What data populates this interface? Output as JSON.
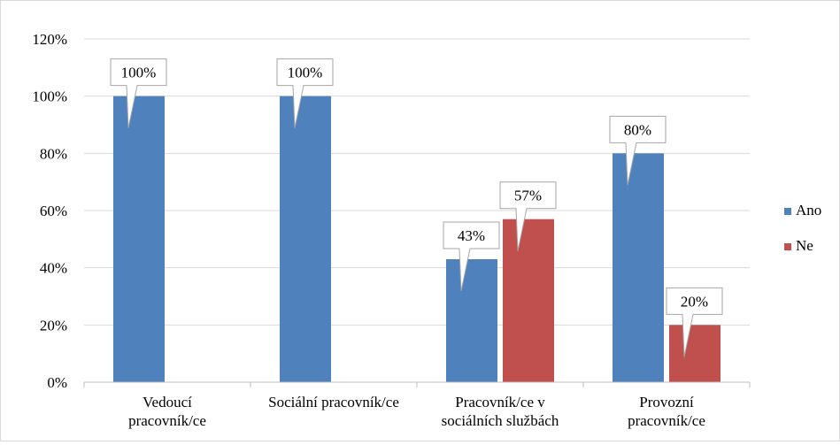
{
  "chart_data": {
    "type": "bar",
    "categories": [
      [
        "Vedoucí",
        "pracovník/ce"
      ],
      [
        "Sociální pracovník/ce"
      ],
      [
        "Pracovník/ce v",
        "sociálních službách"
      ],
      [
        "Provozní",
        "pracovník/ce"
      ]
    ],
    "series": [
      {
        "name": "Ano",
        "color": "#4f81bd",
        "values": [
          100,
          100,
          43,
          80
        ],
        "labels": [
          "100%",
          "100%",
          "43%",
          "80%"
        ]
      },
      {
        "name": "Ne",
        "color": "#c0504d",
        "values": [
          null,
          null,
          57,
          20
        ],
        "labels": [
          "",
          "",
          "57%",
          "20%"
        ]
      }
    ],
    "ylim": [
      0,
      120
    ],
    "yticks": [
      0,
      20,
      40,
      60,
      80,
      100,
      120
    ],
    "ytick_labels": [
      "0%",
      "20%",
      "40%",
      "60%",
      "80%",
      "100%",
      "120%"
    ],
    "grid": true,
    "legend": "right",
    "title": "",
    "xlabel": "",
    "ylabel": ""
  }
}
